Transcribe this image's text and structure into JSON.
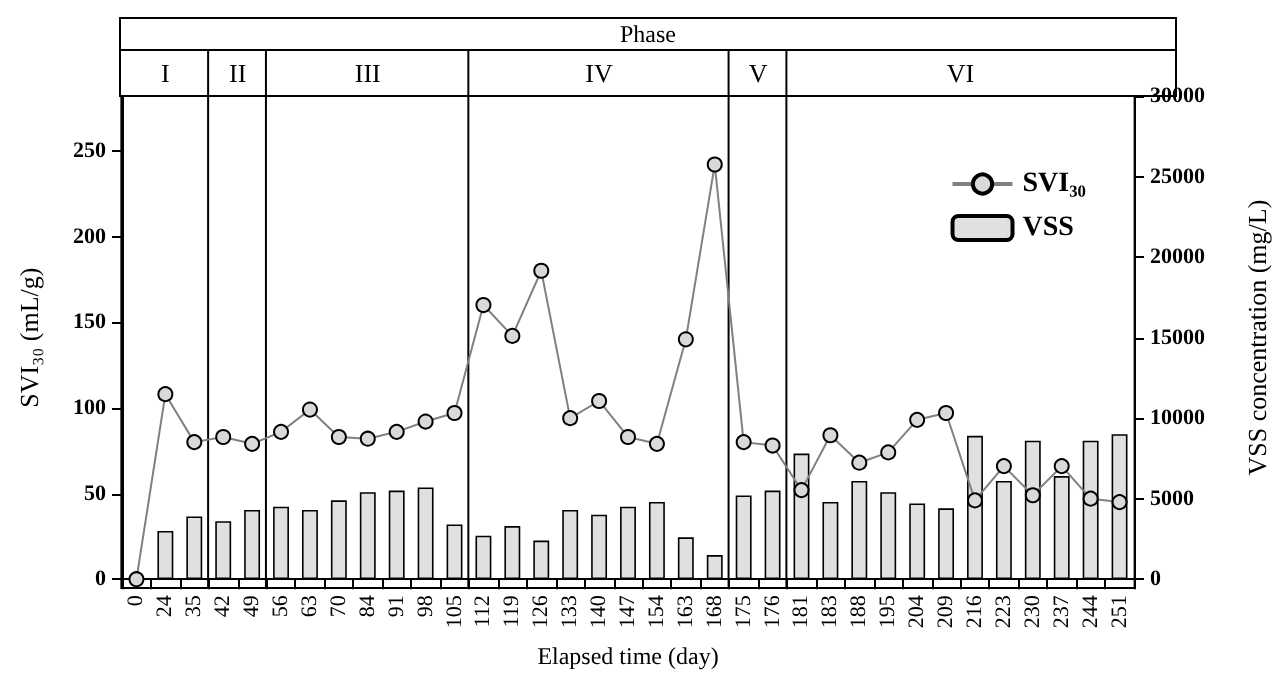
{
  "chart_data": {
    "type": "bar",
    "xlabel": "Elapsed time (day)",
    "ylabel": "SVI₃₀ (mL/g)",
    "y2label": "VSS concentration (mg/L)",
    "categories": [
      "0",
      "24",
      "35",
      "42",
      "49",
      "56",
      "63",
      "70",
      "84",
      "91",
      "98",
      "105",
      "112",
      "119",
      "126",
      "133",
      "140",
      "147",
      "154",
      "163",
      "168",
      "175",
      "176",
      "181",
      "183",
      "188",
      "195",
      "204",
      "209",
      "216",
      "223",
      "230",
      "237",
      "244",
      "251"
    ],
    "series": [
      {
        "name": "SVI₃₀",
        "type": "line",
        "color": "#808080",
        "marker": "circle",
        "values": [
          0,
          108,
          80,
          83,
          79,
          86,
          99,
          83,
          82,
          86,
          92,
          97,
          160,
          142,
          180,
          94,
          104,
          83,
          79,
          140,
          242,
          80,
          78,
          52,
          84,
          68,
          74,
          93,
          97,
          46,
          66,
          49,
          66,
          47,
          45
        ]
      },
      {
        "name": "VSS",
        "axis": "y2",
        "color": "#e0e0e0",
        "values": [
          null,
          3000,
          3900,
          3600,
          4300,
          4500,
          4300,
          4900,
          5400,
          5500,
          5700,
          3400,
          2700,
          3300,
          2400,
          4300,
          4000,
          4500,
          4800,
          2600,
          1500,
          5200,
          5500,
          7800,
          4800,
          6100,
          5400,
          4700,
          4400,
          8900,
          6100,
          8600,
          6400,
          8600,
          9000
        ]
      }
    ],
    "ylim": [
      0,
      282
    ],
    "yticks": [
      0,
      50,
      100,
      150,
      200,
      250
    ],
    "y2lim": [
      0,
      30000
    ],
    "y2ticks": [
      0,
      5000,
      10000,
      15000,
      20000,
      25000,
      30000
    ],
    "bands": [
      {
        "axis": "x",
        "from": "0",
        "to": "35",
        "label": "I"
      },
      {
        "axis": "x",
        "from": "42",
        "to": "49",
        "label": "II"
      },
      {
        "axis": "x",
        "from": "56",
        "to": "105",
        "label": "III"
      },
      {
        "axis": "x",
        "from": "112",
        "to": "168",
        "label": "IV"
      },
      {
        "axis": "x",
        "from": "175",
        "to": "176",
        "label": "V"
      },
      {
        "axis": "x",
        "from": "181",
        "to": "251",
        "label": "VI"
      }
    ],
    "annotations": [
      "Phase"
    ],
    "legend": "top right"
  }
}
